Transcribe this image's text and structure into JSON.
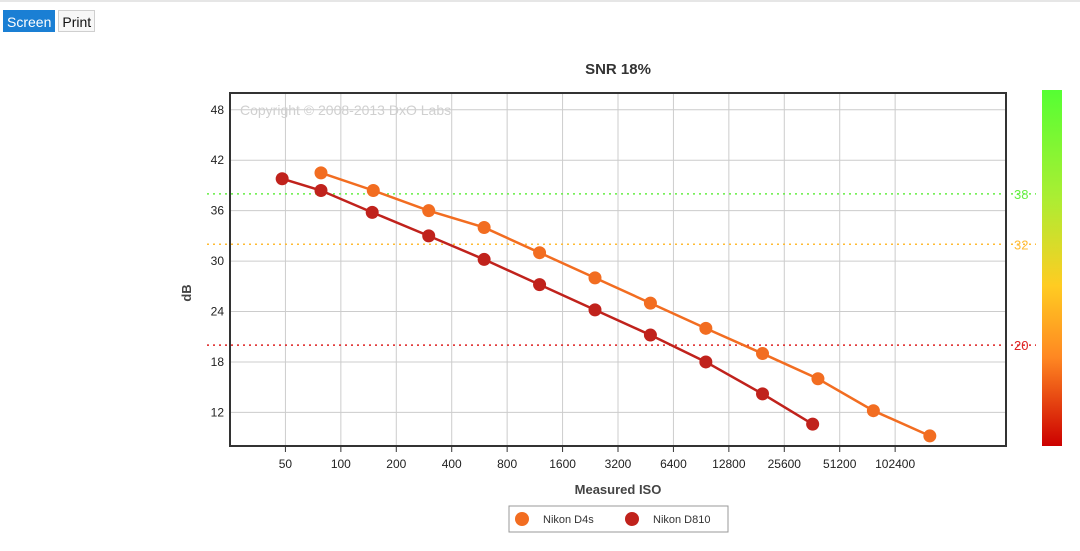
{
  "tabs": [
    {
      "label": "Screen",
      "active": true
    },
    {
      "label": "Print",
      "active": false
    }
  ],
  "chart_data": {
    "type": "line",
    "title": "SNR 18%",
    "xlabel": "Measured ISO",
    "ylabel": "dB",
    "x_scale": "log2",
    "xticks": [
      50,
      100,
      200,
      400,
      800,
      1600,
      3200,
      6400,
      12800,
      25600,
      51200,
      102400
    ],
    "xlim": [
      25,
      409600
    ],
    "yticks": [
      12,
      18,
      24,
      30,
      36,
      42,
      48
    ],
    "ylim": [
      8,
      50
    ],
    "watermark": "Copyright © 2008-2013 DxO Labs",
    "reference_lines": [
      {
        "value": 38,
        "label": "38",
        "color": "#66ee44"
      },
      {
        "value": 32,
        "label": "32",
        "color": "#ffbb33"
      },
      {
        "value": 20,
        "label": "20",
        "color": "#dd2222"
      }
    ],
    "color_scale": [
      "#55ff33",
      "#aaee33",
      "#ffcc22",
      "#ff8822",
      "#cc0000"
    ],
    "series": [
      {
        "name": "Nikon D4s",
        "color": "#f26d21",
        "x": [
          78,
          150,
          300,
          600,
          1200,
          2400,
          4800,
          9600,
          19500,
          39000,
          78000,
          158000
        ],
        "y": [
          40.5,
          38.4,
          36.0,
          34.0,
          31.0,
          28.0,
          25.0,
          22.0,
          19.0,
          16.0,
          12.2,
          9.2
        ]
      },
      {
        "name": "Nikon D810",
        "color": "#c0221c",
        "x": [
          48,
          78,
          148,
          300,
          600,
          1200,
          2400,
          4800,
          9600,
          19500,
          36500
        ],
        "y": [
          39.8,
          38.4,
          35.8,
          33.0,
          30.2,
          27.2,
          24.2,
          21.2,
          18.0,
          14.2,
          10.6
        ]
      }
    ],
    "legend_position": "bottom-center",
    "grid": true
  }
}
